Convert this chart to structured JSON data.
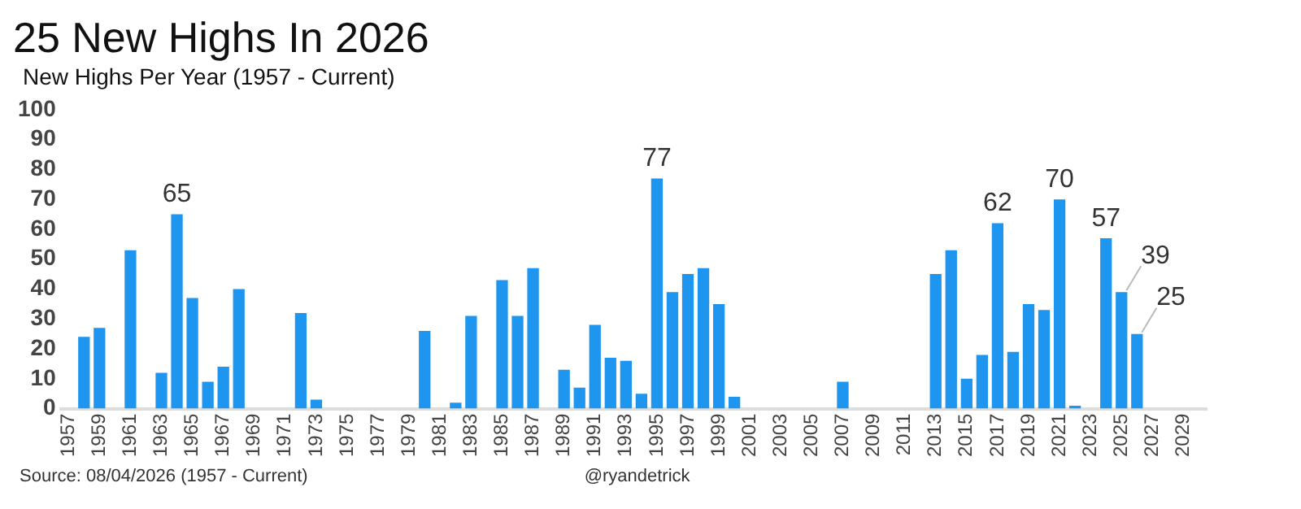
{
  "chart_data": {
    "type": "bar",
    "title": "25 New Highs In 2026",
    "subtitle": "New Highs Per Year (1957 - Current)",
    "categories": [
      "1957",
      null,
      "1959",
      null,
      "1961",
      null,
      "1963",
      null,
      "1965",
      null,
      "1967",
      null,
      "1969",
      null,
      "1971",
      null,
      "1973",
      null,
      "1975",
      null,
      "1977",
      null,
      "1979",
      null,
      "1981",
      null,
      "1983",
      null,
      "1985",
      null,
      "1987",
      null,
      "1989",
      null,
      "1991",
      null,
      "1993",
      null,
      "1995",
      null,
      "1997",
      null,
      "1999",
      null,
      "2001",
      null,
      "2003",
      null,
      "2005",
      null,
      "2007",
      null,
      "2009",
      null,
      "2011",
      null,
      "2013",
      null,
      "2015",
      null,
      "2017",
      null,
      "2019",
      null,
      "2021",
      null,
      "2023",
      null,
      "2025",
      null,
      "2027",
      null,
      "2029",
      null
    ],
    "values": [
      0,
      24,
      27,
      0,
      53,
      0,
      12,
      65,
      37,
      9,
      14,
      40,
      0,
      0,
      0,
      32,
      3,
      0,
      0,
      0,
      0,
      0,
      0,
      26,
      0,
      2,
      31,
      0,
      43,
      31,
      47,
      0,
      13,
      7,
      28,
      17,
      16,
      5,
      77,
      39,
      45,
      47,
      35,
      4,
      0,
      0,
      0,
      0,
      0,
      0,
      9,
      0,
      0,
      0,
      0,
      0,
      45,
      53,
      10,
      18,
      62,
      19,
      35,
      33,
      70,
      1,
      0,
      57,
      39,
      25,
      0,
      0,
      0,
      0
    ],
    "value_labels": [
      null,
      null,
      null,
      null,
      null,
      null,
      null,
      "65",
      null,
      null,
      null,
      null,
      null,
      null,
      null,
      null,
      null,
      null,
      null,
      null,
      null,
      null,
      null,
      null,
      null,
      null,
      null,
      null,
      null,
      null,
      null,
      null,
      null,
      null,
      null,
      null,
      null,
      null,
      "77",
      null,
      null,
      null,
      null,
      null,
      null,
      null,
      null,
      null,
      null,
      null,
      null,
      null,
      null,
      null,
      null,
      null,
      null,
      null,
      null,
      null,
      "62",
      null,
      null,
      null,
      "70",
      null,
      null,
      "57",
      "39",
      "25",
      null,
      null,
      null,
      null
    ],
    "color": "#1e96f0",
    "ylim": [
      0,
      100
    ],
    "yticks": [
      0,
      10,
      20,
      30,
      40,
      50,
      60,
      70,
      80,
      90,
      100
    ],
    "grid": false,
    "annotations": [
      "Source: 08/04/2026 (1957 - Current)",
      "@ryandetrick"
    ]
  }
}
